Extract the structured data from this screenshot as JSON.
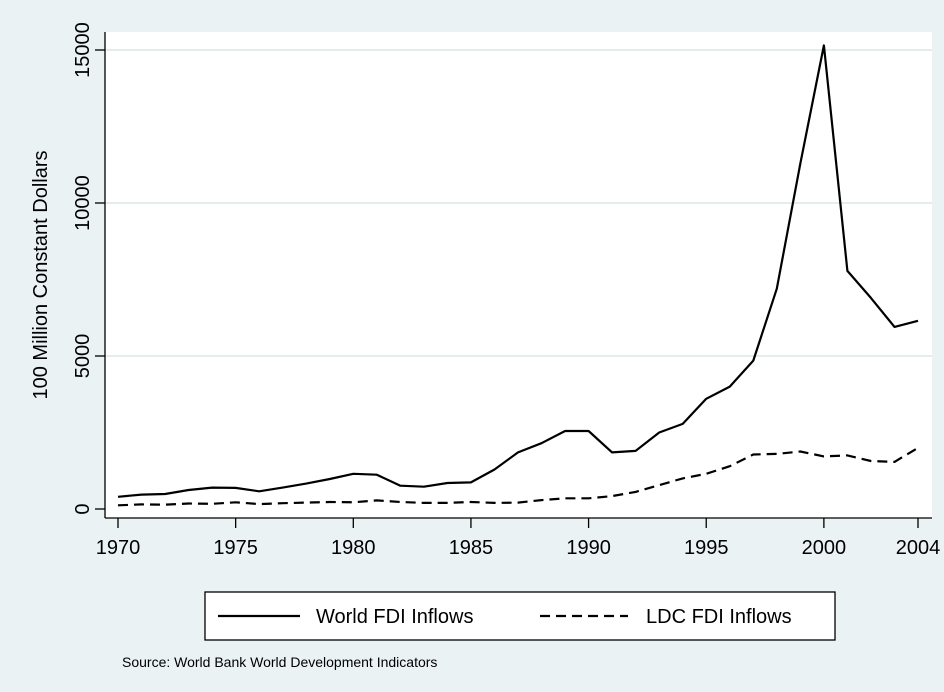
{
  "chart_data": {
    "type": "line",
    "title": "",
    "xlabel": "",
    "ylabel": "100 Million Constant Dollars",
    "note": "Source: World Bank World Development Indicators",
    "xlim": [
      1970,
      2004
    ],
    "ylim": [
      0,
      15000
    ],
    "x_ticks": [
      "1970",
      "1975",
      "1980",
      "1985",
      "1990",
      "1995",
      "2000",
      "2004"
    ],
    "y_ticks": [
      "0",
      "5000",
      "10000",
      "15000"
    ],
    "grid": "horizontal",
    "legend_position": "bottom",
    "x": [
      1970,
      1971,
      1972,
      1973,
      1974,
      1975,
      1976,
      1977,
      1978,
      1979,
      1980,
      1981,
      1982,
      1983,
      1984,
      1985,
      1986,
      1987,
      1988,
      1989,
      1990,
      1991,
      1992,
      1993,
      1994,
      1995,
      1996,
      1997,
      1998,
      1999,
      2000,
      2001,
      2002,
      2003,
      2004
    ],
    "series": [
      {
        "name": "World FDI Inflows",
        "style": "solid",
        "color": "#000000",
        "values": [
          400,
          470,
          490,
          620,
          700,
          690,
          580,
          700,
          830,
          980,
          1150,
          1120,
          760,
          730,
          850,
          870,
          1290,
          1850,
          2150,
          2550,
          2550,
          1850,
          1900,
          2500,
          2780,
          3600,
          4000,
          4850,
          7200,
          11300,
          15150,
          7780,
          6900,
          5950,
          6150
        ]
      },
      {
        "name": "LDC FDI Inflows",
        "style": "dashed",
        "color": "#000000",
        "values": [
          120,
          150,
          140,
          180,
          170,
          220,
          160,
          190,
          210,
          230,
          220,
          280,
          230,
          200,
          200,
          230,
          200,
          210,
          290,
          350,
          350,
          420,
          560,
          780,
          1000,
          1150,
          1400,
          1780,
          1800,
          1880,
          1720,
          1750,
          1570,
          1540,
          2000
        ]
      }
    ]
  },
  "colors": {
    "background": "#eaf2f3",
    "plot_area": "#ffffff",
    "grid": "#e4eced"
  }
}
